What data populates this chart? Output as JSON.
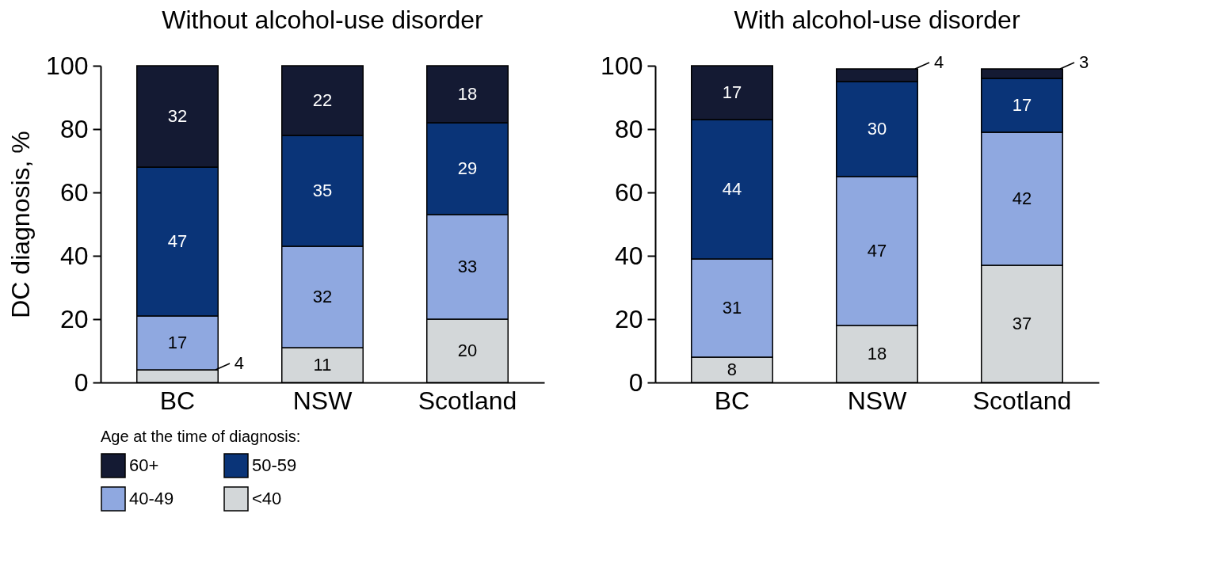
{
  "chart_data": [
    {
      "type": "bar",
      "title": "Without alcohol-use disorder",
      "ylabel": "DC diagnosis, %",
      "categories": [
        "BC",
        "NSW",
        "Scotland"
      ],
      "stacked": true,
      "data_labels": true,
      "legend": "bottom",
      "legend_title": "Age at the time of diagnosis:",
      "ylim": [
        0,
        100
      ],
      "yticks": [
        0,
        20,
        40,
        60,
        80,
        100
      ],
      "series": [
        {
          "name": "<40",
          "color": "#d3d7d9",
          "values": [
            4,
            11,
            20
          ]
        },
        {
          "name": "40-49",
          "color": "#8fa8e0",
          "values": [
            17,
            32,
            33
          ]
        },
        {
          "name": "50-59",
          "color": "#0a3478",
          "values": [
            47,
            35,
            29
          ]
        },
        {
          "name": "60+",
          "color": "#141a33",
          "values": [
            32,
            22,
            18
          ]
        }
      ]
    },
    {
      "type": "bar",
      "title": "With alcohol-use disorder",
      "categories": [
        "BC",
        "NSW",
        "Scotland"
      ],
      "stacked": true,
      "data_labels": true,
      "ylim": [
        0,
        100
      ],
      "yticks": [
        0,
        20,
        40,
        60,
        80,
        100
      ],
      "series": [
        {
          "color": "#d3d7d9",
          "values": [
            8,
            18,
            37
          ]
        },
        {
          "color": "#8fa8e0",
          "values": [
            31,
            47,
            42
          ]
        },
        {
          "color": "#0a3478",
          "values": [
            44,
            30,
            17
          ]
        },
        {
          "color": "#141a33",
          "values": [
            17,
            4,
            3
          ]
        }
      ]
    }
  ]
}
